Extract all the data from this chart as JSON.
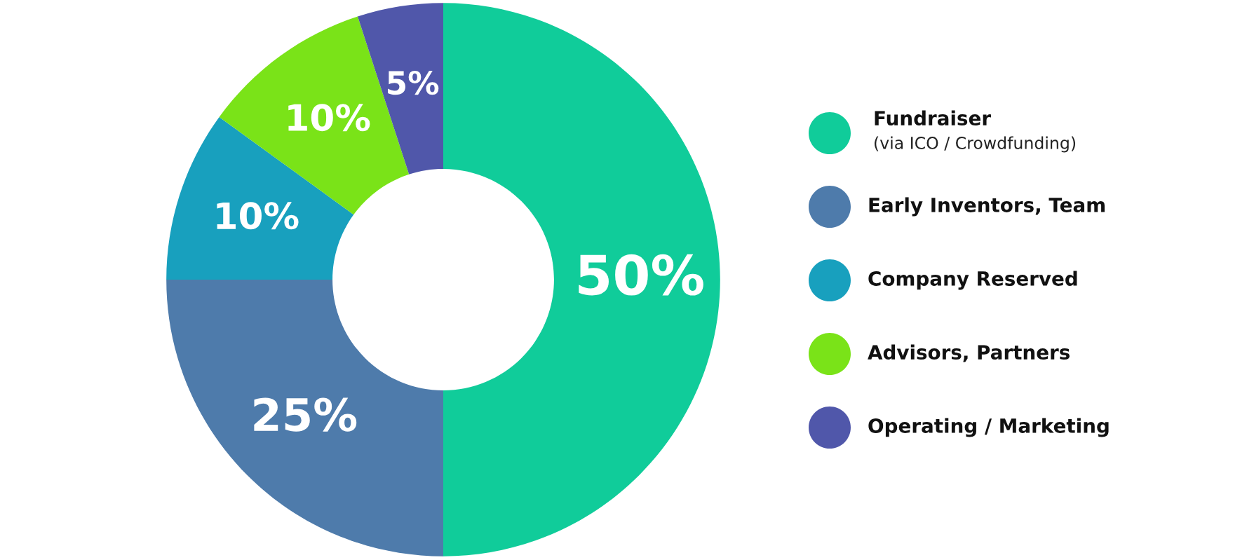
{
  "chart_data": {
    "type": "donut",
    "categories": [
      "Fundraiser\n(via ICO / Crowdfunding)",
      "Early Inventors, Team",
      "Company Reserved",
      "Advisors, Partners",
      "Operating / Marketing"
    ],
    "values": [
      50,
      25,
      10,
      10,
      5
    ],
    "colors": [
      "#10cc9a",
      "#4e7bab",
      "#18a0be",
      "#7ae318",
      "#5057aa"
    ],
    "value_labels": [
      "50%",
      "25%",
      "10%",
      "10%",
      "5%"
    ],
    "legend": "right"
  }
}
